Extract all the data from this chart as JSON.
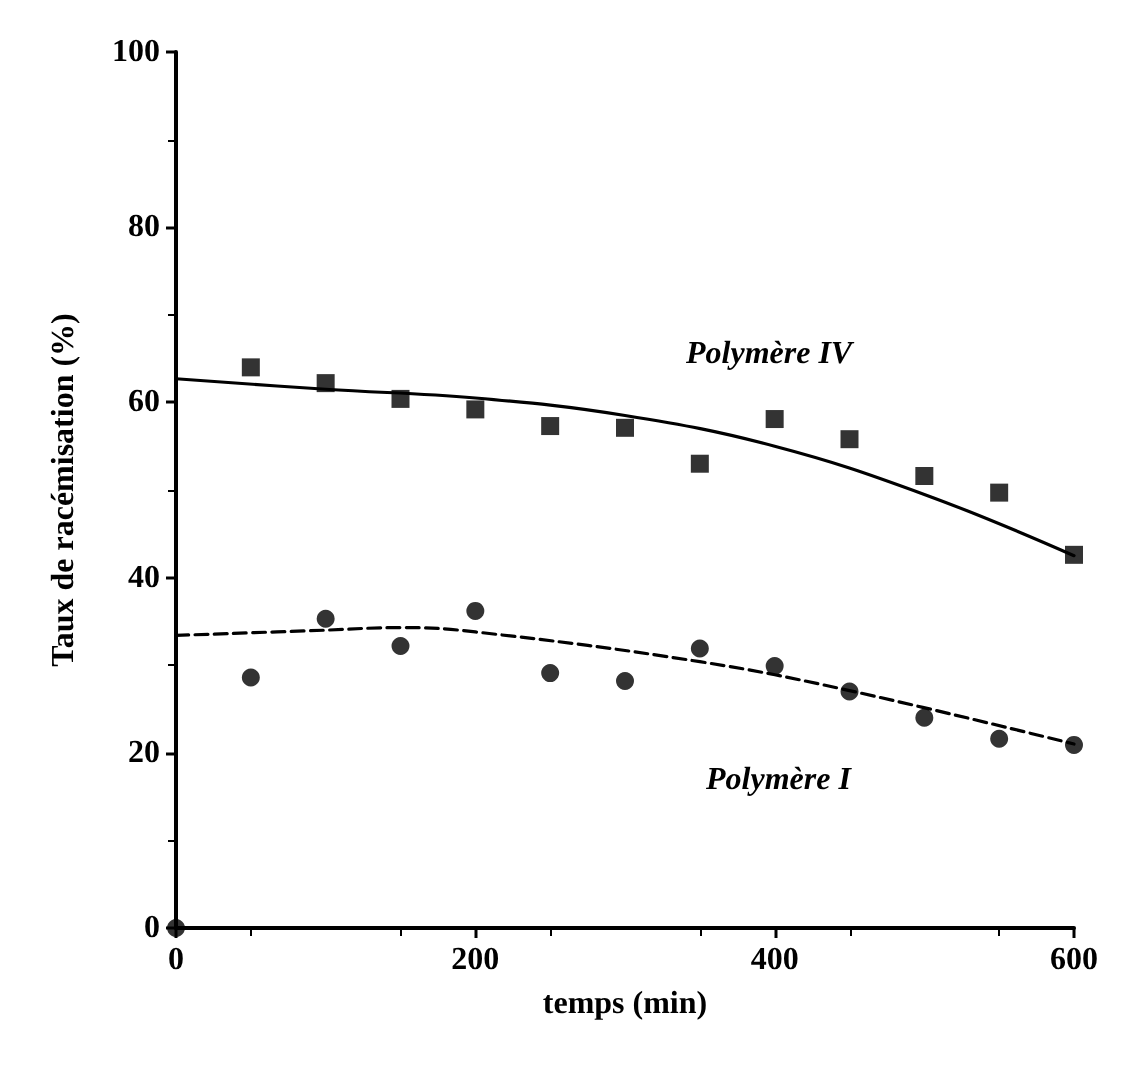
{
  "chart_data": {
    "type": "scatter",
    "xlabel": "temps (min)",
    "ylabel": "Taux de racémisation (%)",
    "xlim": [
      0,
      600
    ],
    "xticks": [
      0,
      200,
      400,
      600
    ],
    "ylim": [
      0,
      100
    ],
    "yticks": [
      0,
      20,
      40,
      60,
      80,
      100
    ],
    "grid": false,
    "series": [
      {
        "marker": "square",
        "color": "#000000",
        "x": [
          50,
          100,
          150,
          200,
          250,
          300,
          350,
          400,
          450,
          500,
          550,
          600
        ],
        "values": [
          64,
          62.2,
          60.4,
          59.2,
          57.3,
          57.1,
          53,
          58.1,
          55.8,
          51.6,
          49.7,
          42.6
        ]
      },
      {
        "marker": "circle",
        "color": "#000000",
        "x": [
          0,
          50,
          100,
          150,
          200,
          250,
          300,
          350,
          400,
          450,
          500,
          550,
          600
        ],
        "values": [
          0,
          28.6,
          35.3,
          32.2,
          36.2,
          29.1,
          28.2,
          31.9,
          29.9,
          27,
          24,
          21.6,
          20.9
        ]
      },
      {
        "type": "line",
        "marker": "none",
        "line_style": "solid",
        "color": "#000000",
        "x": [
          0,
          100,
          200,
          300,
          400,
          500,
          600
        ],
        "values": [
          62.7,
          61.5,
          60.5,
          58.5,
          55,
          49.5,
          42.5
        ]
      },
      {
        "type": "line",
        "marker": "none",
        "line_style": "dashed",
        "color": "#000000",
        "x": [
          0,
          100,
          150,
          200,
          350,
          450,
          600
        ],
        "values": [
          33.4,
          34,
          34.3,
          33.8,
          30.4,
          27.1,
          21
        ]
      }
    ],
    "annotations": [
      "Polymère IV",
      "Polymère I"
    ]
  }
}
